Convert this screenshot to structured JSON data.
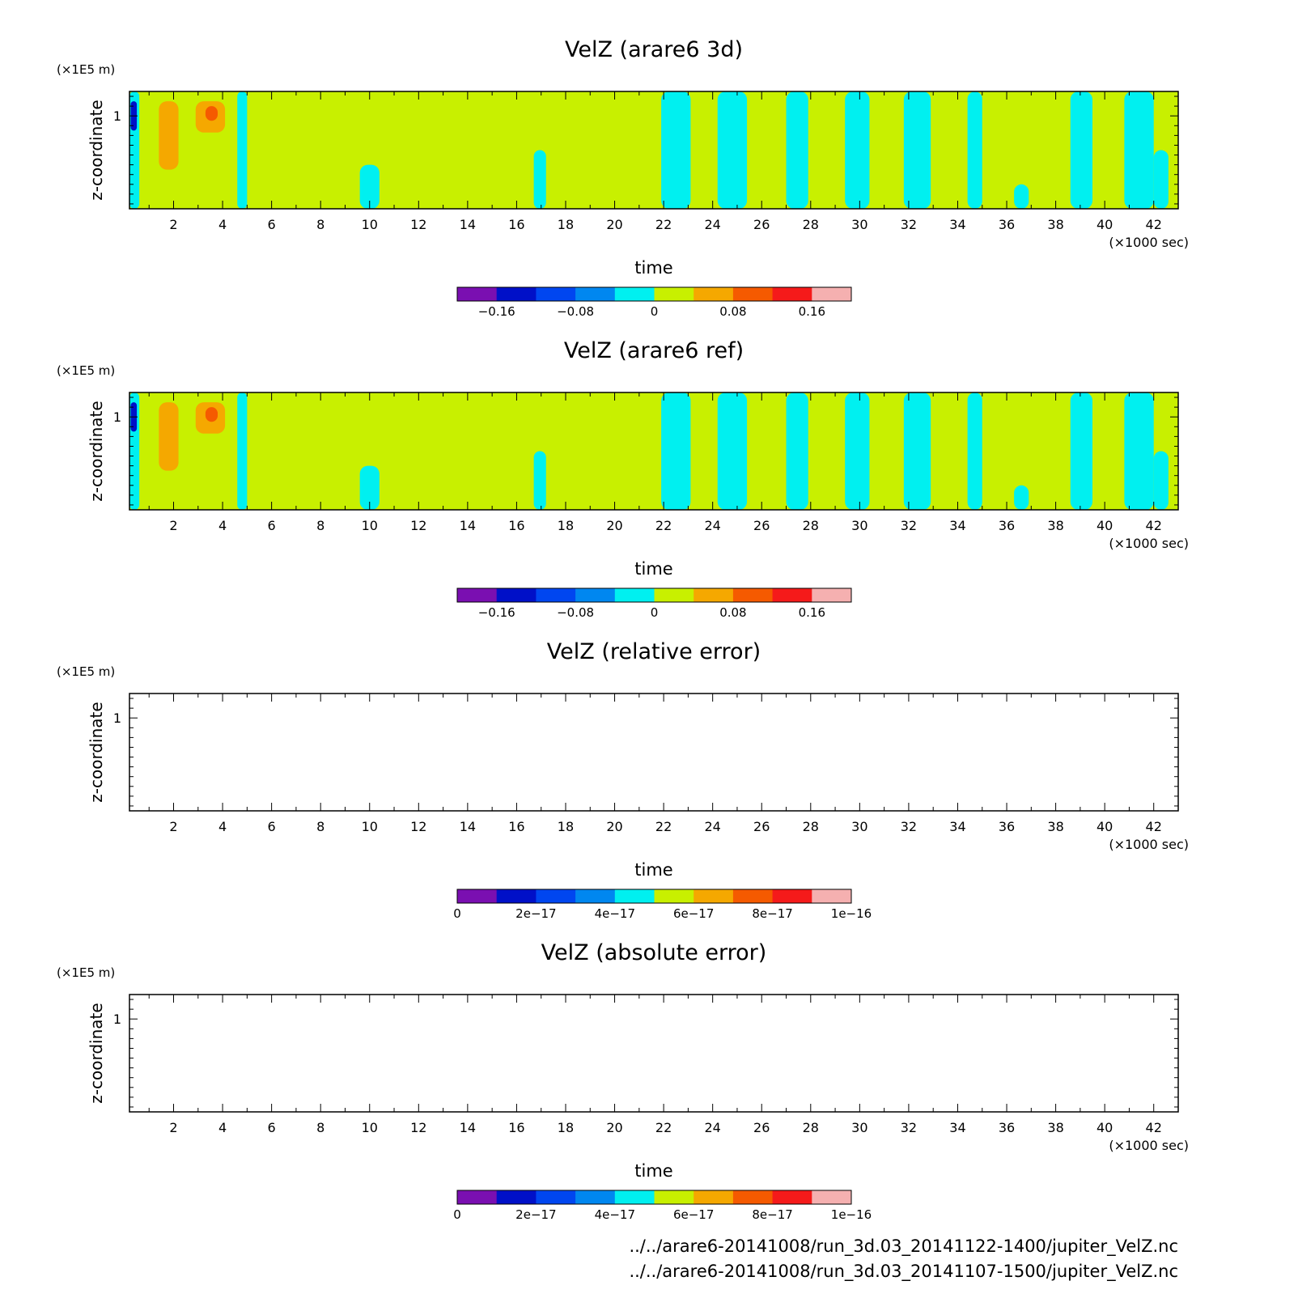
{
  "x_unit": "(×1000 sec)",
  "y_unit": "(×1E5 m)",
  "chart_data": [
    {
      "type": "heatmap",
      "title": "VelZ (arare6 3d)",
      "xlabel": "time",
      "ylabel": "z-coordinate",
      "xlim": [
        0.2,
        43
      ],
      "ylim": [
        0.05,
        1.25
      ],
      "xticks": [
        "2",
        "4",
        "6",
        "8",
        "10",
        "12",
        "14",
        "16",
        "18",
        "20",
        "22",
        "24",
        "26",
        "28",
        "30",
        "32",
        "34",
        "36",
        "38",
        "40",
        "42"
      ],
      "yticks": [
        "1"
      ],
      "colorbar": {
        "colors": [
          "#7a0fb1",
          "#0010c8",
          "#0046f0",
          "#0087f0",
          "#00f0f0",
          "#c8f000",
          "#f5a800",
          "#f55a00",
          "#f51a1a",
          "#f5b0b0"
        ],
        "tick_labels": [
          "−0.16",
          "−0.08",
          "0",
          "0.08",
          "0.16"
        ],
        "tick_positions": [
          1,
          3,
          5,
          7,
          9
        ]
      },
      "background_value": 0.01,
      "background_color": "#c8f000",
      "features": [
        {
          "x": [
            1.4,
            2.2
          ],
          "z": [
            0.45,
            1.15
          ],
          "value": 0.05
        },
        {
          "x": [
            2.9,
            4.1
          ],
          "z": [
            0.83,
            1.15
          ],
          "value": 0.05
        },
        {
          "x": [
            3.3,
            3.8
          ],
          "z": [
            0.95,
            1.1
          ],
          "value": 0.1
        },
        {
          "x": [
            0.2,
            0.6
          ],
          "z": [
            0.05,
            1.25
          ],
          "value": -0.01
        },
        {
          "x": [
            0.25,
            0.5
          ],
          "z": [
            0.85,
            1.15
          ],
          "value": -0.15
        },
        {
          "x": [
            4.6,
            5.0
          ],
          "z": [
            0.05,
            1.25
          ],
          "value": -0.01
        },
        {
          "x": [
            9.6,
            10.4
          ],
          "z": [
            0.05,
            0.5
          ],
          "value": -0.01
        },
        {
          "x": [
            16.7,
            17.2
          ],
          "z": [
            0.05,
            0.65
          ],
          "value": -0.01
        },
        {
          "x": [
            21.9,
            23.1
          ],
          "z": [
            0.05,
            1.25
          ],
          "value": -0.01
        },
        {
          "x": [
            24.2,
            25.4
          ],
          "z": [
            0.05,
            1.25
          ],
          "value": -0.01
        },
        {
          "x": [
            27.0,
            27.9
          ],
          "z": [
            0.05,
            1.25
          ],
          "value": -0.01
        },
        {
          "x": [
            29.4,
            30.4
          ],
          "z": [
            0.05,
            1.25
          ],
          "value": -0.01
        },
        {
          "x": [
            31.8,
            32.9
          ],
          "z": [
            0.05,
            1.25
          ],
          "value": -0.01
        },
        {
          "x": [
            34.4,
            35.0
          ],
          "z": [
            0.05,
            1.25
          ],
          "value": -0.01
        },
        {
          "x": [
            36.3,
            36.9
          ],
          "z": [
            0.05,
            0.3
          ],
          "value": -0.01
        },
        {
          "x": [
            38.6,
            39.5
          ],
          "z": [
            0.05,
            1.25
          ],
          "value": -0.01
        },
        {
          "x": [
            40.8,
            42.0
          ],
          "z": [
            0.05,
            1.25
          ],
          "value": -0.01
        },
        {
          "x": [
            42.0,
            42.6
          ],
          "z": [
            0.05,
            0.65
          ],
          "value": -0.01
        }
      ]
    },
    {
      "type": "heatmap",
      "title": "VelZ (arare6 ref)",
      "xlabel": "time",
      "ylabel": "z-coordinate",
      "xlim": [
        0.2,
        43
      ],
      "ylim": [
        0.05,
        1.25
      ],
      "xticks": [
        "2",
        "4",
        "6",
        "8",
        "10",
        "12",
        "14",
        "16",
        "18",
        "20",
        "22",
        "24",
        "26",
        "28",
        "30",
        "32",
        "34",
        "36",
        "38",
        "40",
        "42"
      ],
      "yticks": [
        "1"
      ],
      "colorbar": {
        "colors": [
          "#7a0fb1",
          "#0010c8",
          "#0046f0",
          "#0087f0",
          "#00f0f0",
          "#c8f000",
          "#f5a800",
          "#f55a00",
          "#f51a1a",
          "#f5b0b0"
        ],
        "tick_labels": [
          "−0.16",
          "−0.08",
          "0",
          "0.08",
          "0.16"
        ],
        "tick_positions": [
          1,
          3,
          5,
          7,
          9
        ]
      },
      "background_value": 0.01,
      "background_color": "#c8f000",
      "features": [
        {
          "x": [
            1.4,
            2.2
          ],
          "z": [
            0.45,
            1.15
          ],
          "value": 0.05
        },
        {
          "x": [
            2.9,
            4.1
          ],
          "z": [
            0.83,
            1.15
          ],
          "value": 0.05
        },
        {
          "x": [
            3.3,
            3.8
          ],
          "z": [
            0.95,
            1.1
          ],
          "value": 0.1
        },
        {
          "x": [
            0.2,
            0.6
          ],
          "z": [
            0.05,
            1.25
          ],
          "value": -0.01
        },
        {
          "x": [
            0.25,
            0.5
          ],
          "z": [
            0.85,
            1.15
          ],
          "value": -0.15
        },
        {
          "x": [
            4.6,
            5.0
          ],
          "z": [
            0.05,
            1.25
          ],
          "value": -0.01
        },
        {
          "x": [
            9.6,
            10.4
          ],
          "z": [
            0.05,
            0.5
          ],
          "value": -0.01
        },
        {
          "x": [
            16.7,
            17.2
          ],
          "z": [
            0.05,
            0.65
          ],
          "value": -0.01
        },
        {
          "x": [
            21.9,
            23.1
          ],
          "z": [
            0.05,
            1.25
          ],
          "value": -0.01
        },
        {
          "x": [
            24.2,
            25.4
          ],
          "z": [
            0.05,
            1.25
          ],
          "value": -0.01
        },
        {
          "x": [
            27.0,
            27.9
          ],
          "z": [
            0.05,
            1.25
          ],
          "value": -0.01
        },
        {
          "x": [
            29.4,
            30.4
          ],
          "z": [
            0.05,
            1.25
          ],
          "value": -0.01
        },
        {
          "x": [
            31.8,
            32.9
          ],
          "z": [
            0.05,
            1.25
          ],
          "value": -0.01
        },
        {
          "x": [
            34.4,
            35.0
          ],
          "z": [
            0.05,
            1.25
          ],
          "value": -0.01
        },
        {
          "x": [
            36.3,
            36.9
          ],
          "z": [
            0.05,
            0.3
          ],
          "value": -0.01
        },
        {
          "x": [
            38.6,
            39.5
          ],
          "z": [
            0.05,
            1.25
          ],
          "value": -0.01
        },
        {
          "x": [
            40.8,
            42.0
          ],
          "z": [
            0.05,
            1.25
          ],
          "value": -0.01
        },
        {
          "x": [
            42.0,
            42.6
          ],
          "z": [
            0.05,
            0.65
          ],
          "value": -0.01
        }
      ]
    },
    {
      "type": "heatmap",
      "title": "VelZ (relative error)",
      "xlabel": "time",
      "ylabel": "z-coordinate",
      "xlim": [
        0.2,
        43
      ],
      "ylim": [
        0.05,
        1.25
      ],
      "xticks": [
        "2",
        "4",
        "6",
        "8",
        "10",
        "12",
        "14",
        "16",
        "18",
        "20",
        "22",
        "24",
        "26",
        "28",
        "30",
        "32",
        "34",
        "36",
        "38",
        "40",
        "42"
      ],
      "yticks": [
        "1"
      ],
      "colorbar": {
        "colors": [
          "#7a0fb1",
          "#0010c8",
          "#0046f0",
          "#0087f0",
          "#00f0f0",
          "#c8f000",
          "#f5a800",
          "#f55a00",
          "#f51a1a",
          "#f5b0b0"
        ],
        "tick_labels": [
          "0",
          "2e−17",
          "4e−17",
          "6e−17",
          "8e−17",
          "1e−16"
        ],
        "tick_positions": [
          0,
          2,
          4,
          6,
          8,
          10
        ]
      },
      "background_value": null,
      "background_color": "#ffffff",
      "features": []
    },
    {
      "type": "heatmap",
      "title": "VelZ (absolute error)",
      "xlabel": "time",
      "ylabel": "z-coordinate",
      "xlim": [
        0.2,
        43
      ],
      "ylim": [
        0.05,
        1.25
      ],
      "xticks": [
        "2",
        "4",
        "6",
        "8",
        "10",
        "12",
        "14",
        "16",
        "18",
        "20",
        "22",
        "24",
        "26",
        "28",
        "30",
        "32",
        "34",
        "36",
        "38",
        "40",
        "42"
      ],
      "yticks": [
        "1"
      ],
      "colorbar": {
        "colors": [
          "#7a0fb1",
          "#0010c8",
          "#0046f0",
          "#0087f0",
          "#00f0f0",
          "#c8f000",
          "#f5a800",
          "#f55a00",
          "#f51a1a",
          "#f5b0b0"
        ],
        "tick_labels": [
          "0",
          "2e−17",
          "4e−17",
          "6e−17",
          "8e−17",
          "1e−16"
        ],
        "tick_positions": [
          0,
          2,
          4,
          6,
          8,
          10
        ]
      },
      "background_value": null,
      "background_color": "#ffffff",
      "features": []
    }
  ],
  "footer": {
    "lines": [
      "../../arare6-20141008/run_3d.03_20141122-1400/jupiter_VelZ.nc",
      "../../arare6-20141008/run_3d.03_20141107-1500/jupiter_VelZ.nc"
    ]
  }
}
